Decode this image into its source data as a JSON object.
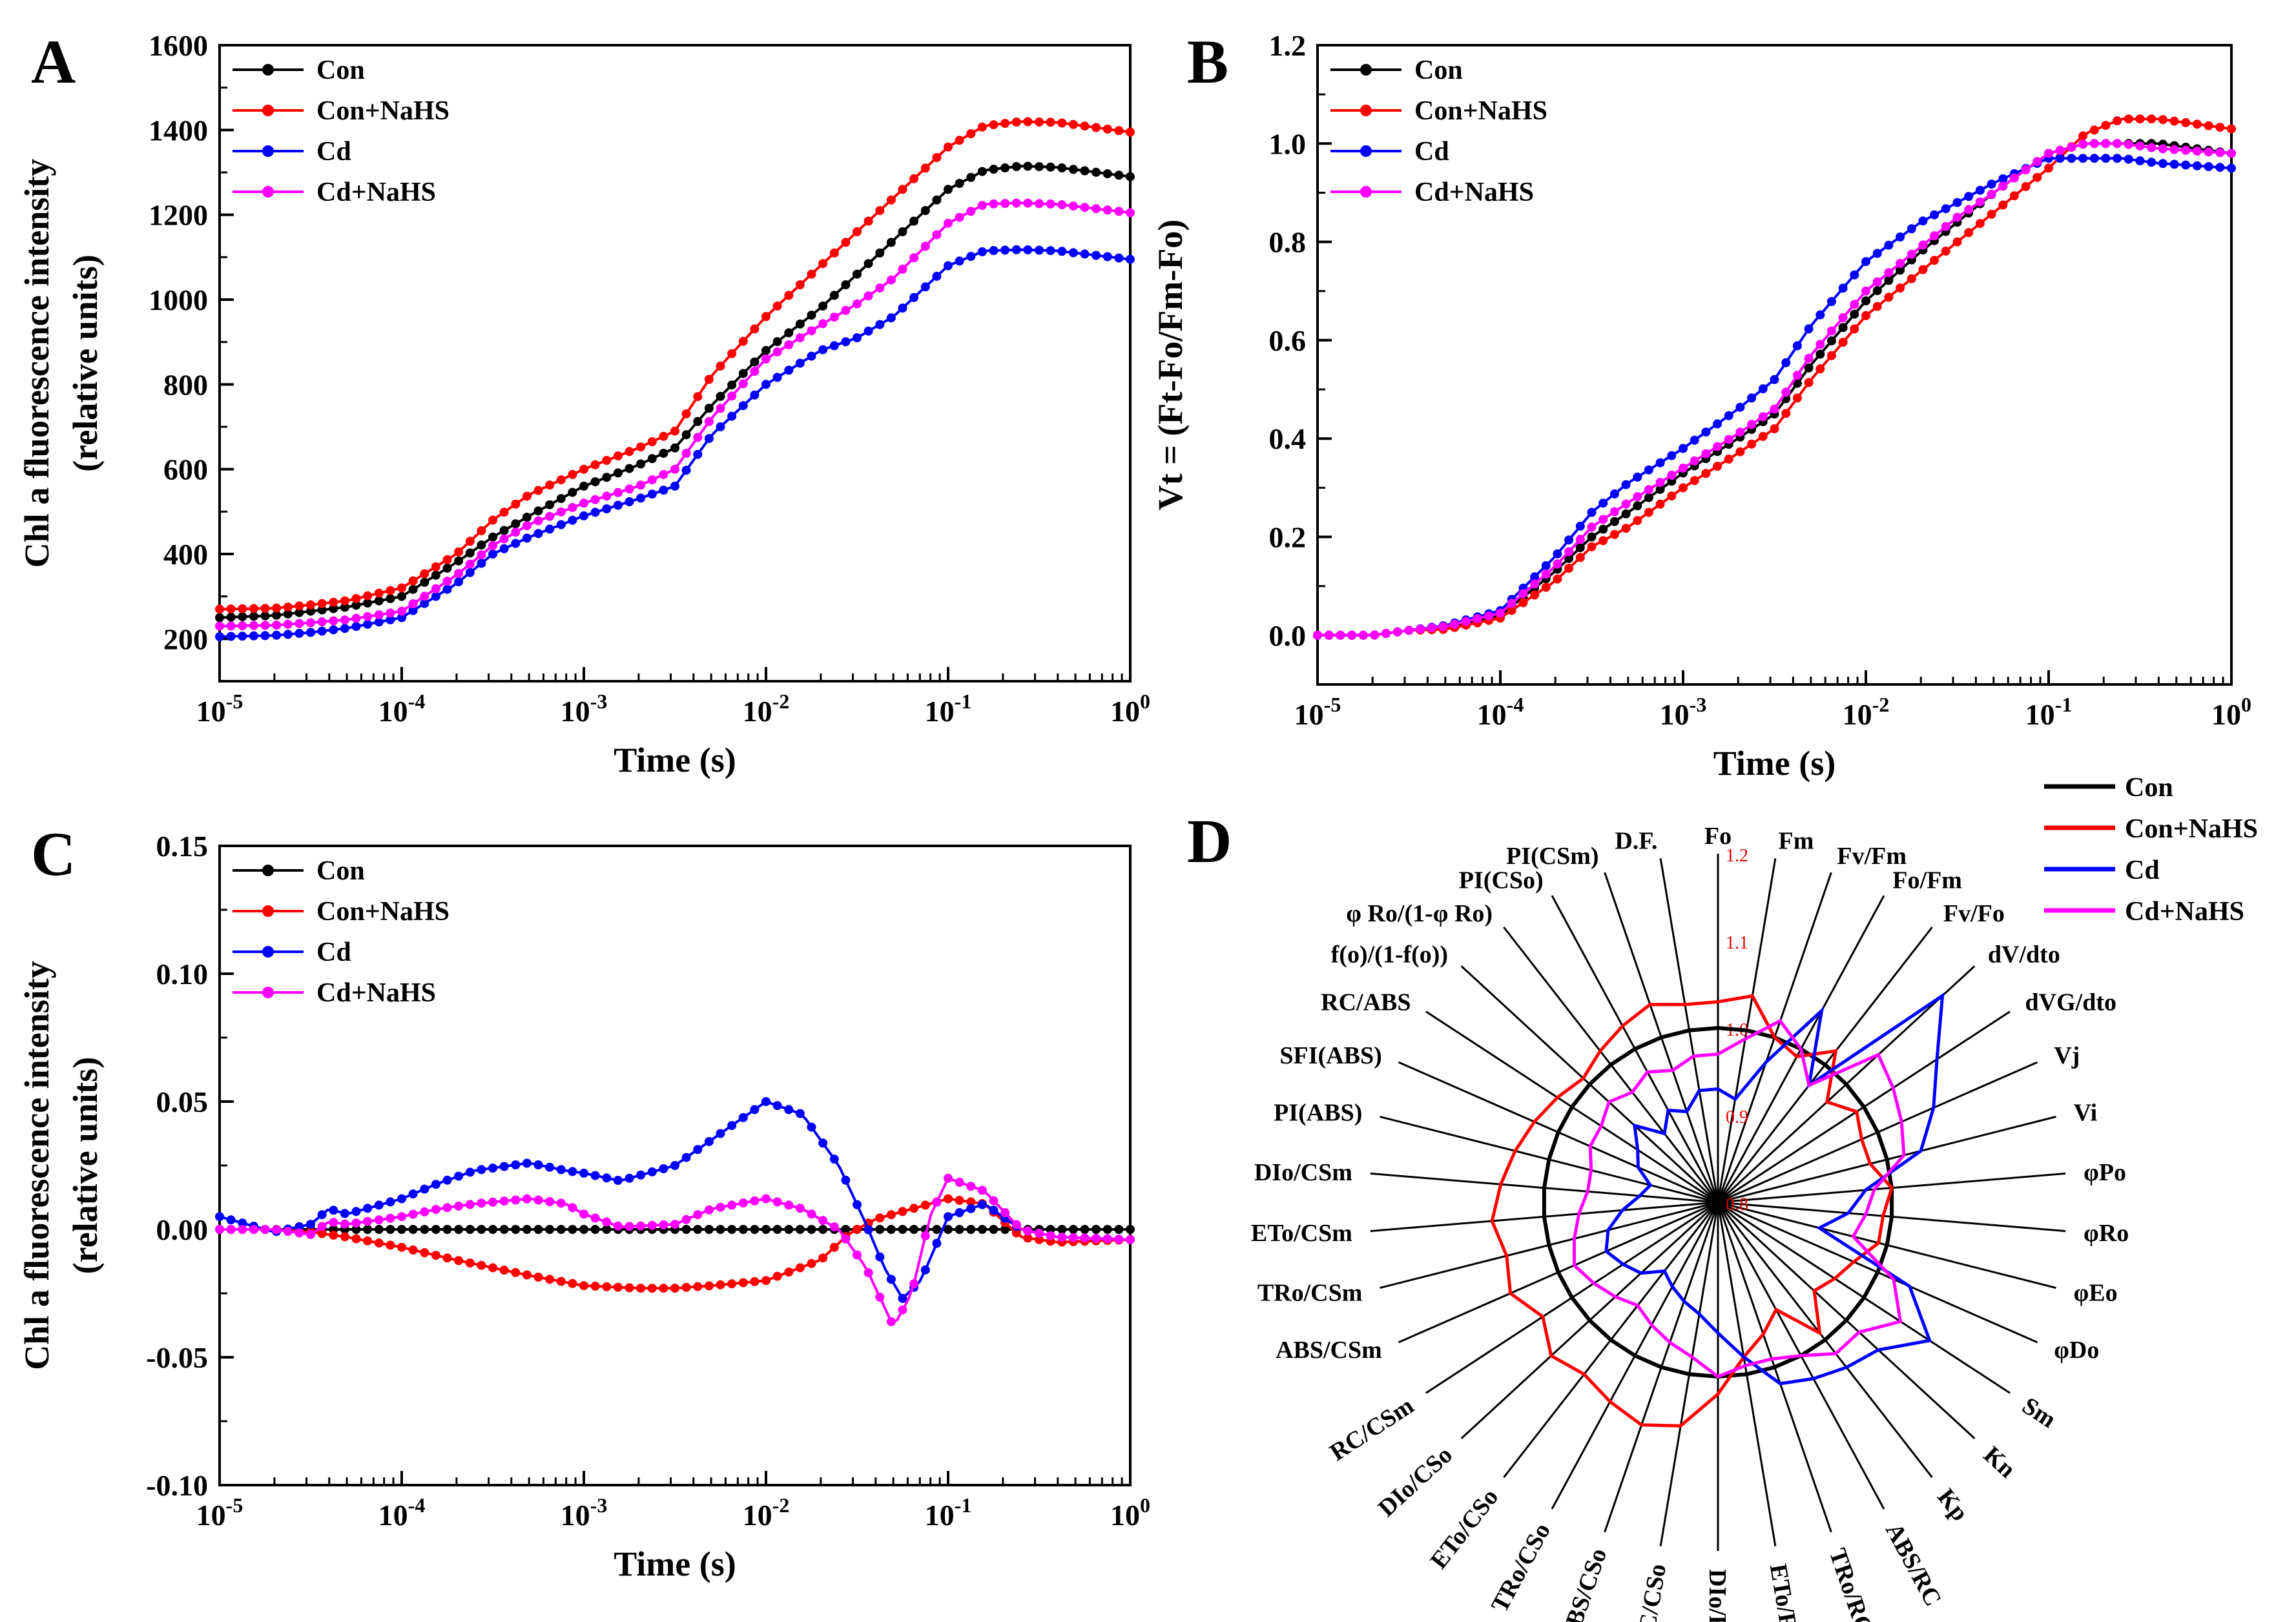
{
  "colors": {
    "con": "#000000",
    "con_nahs": "#ff0000",
    "cd": "#0000ff",
    "cd_nahs": "#ff00ff"
  },
  "panels": {
    "A": {
      "letter": "A"
    },
    "B": {
      "letter": "B"
    },
    "C": {
      "letter": "C"
    },
    "D": {
      "letter": "D"
    }
  },
  "chart_data": [
    {
      "id": "A",
      "type": "line",
      "xscale": "log",
      "xlabel": "Time (s)",
      "ylabel_line1": "Chl a fluorescence intensity",
      "ylabel_line2": "(relative units)",
      "xlim": [
        -5,
        0
      ],
      "ylim": [
        100,
        1600
      ],
      "xtick_exps": [
        "-5",
        "-4",
        "-3",
        "-2",
        "-1",
        "0"
      ],
      "yticks": [
        200,
        400,
        600,
        800,
        1000,
        1200,
        1400,
        1600
      ],
      "legend_position": "top-left",
      "series": [
        {
          "name": "Con",
          "color": "#000000",
          "logx": [
            -5,
            -4.7,
            -4.5,
            -4.3,
            -4,
            -3.7,
            -3.5,
            -3.3,
            -3,
            -2.7,
            -2.5,
            -2.3,
            -2,
            -1.7,
            -1.5,
            -1.3,
            -1,
            -0.8,
            -0.6,
            -0.4,
            0
          ],
          "y": [
            250,
            255,
            265,
            275,
            300,
            380,
            440,
            490,
            560,
            610,
            650,
            750,
            880,
            980,
            1060,
            1140,
            1260,
            1305,
            1315,
            1312,
            1290
          ]
        },
        {
          "name": "Con+NaHS",
          "color": "#ff0000",
          "logx": [
            -5,
            -4.7,
            -4.5,
            -4.3,
            -4,
            -3.7,
            -3.5,
            -3.3,
            -3,
            -2.7,
            -2.5,
            -2.3,
            -2,
            -1.7,
            -1.5,
            -1.3,
            -1,
            -0.8,
            -0.6,
            -0.4,
            0
          ],
          "y": [
            270,
            272,
            280,
            290,
            320,
            400,
            480,
            540,
            600,
            650,
            690,
            820,
            960,
            1080,
            1160,
            1240,
            1360,
            1410,
            1420,
            1418,
            1395
          ]
        },
        {
          "name": "Cd",
          "color": "#0000ff",
          "logx": [
            -5,
            -4.7,
            -4.5,
            -4.3,
            -4,
            -3.7,
            -3.5,
            -3.3,
            -3,
            -2.7,
            -2.5,
            -2.3,
            -2,
            -1.7,
            -1.5,
            -1.3,
            -1,
            -0.8,
            -0.6,
            -0.4,
            0
          ],
          "y": [
            205,
            208,
            215,
            225,
            250,
            330,
            400,
            440,
            490,
            530,
            560,
            680,
            800,
            880,
            910,
            960,
            1080,
            1115,
            1118,
            1115,
            1095
          ]
        },
        {
          "name": "Cd+NaHS",
          "color": "#ff00ff",
          "logx": [
            -5,
            -4.7,
            -4.5,
            -4.3,
            -4,
            -3.7,
            -3.5,
            -3.3,
            -3,
            -2.7,
            -2.5,
            -2.3,
            -2,
            -1.7,
            -1.5,
            -1.3,
            -1,
            -0.8,
            -0.6,
            -0.4,
            0
          ],
          "y": [
            230,
            232,
            238,
            245,
            265,
            350,
            420,
            470,
            520,
            560,
            600,
            720,
            860,
            940,
            990,
            1050,
            1180,
            1225,
            1228,
            1225,
            1205
          ]
        }
      ]
    },
    {
      "id": "B",
      "type": "line",
      "xscale": "log",
      "xlabel": "Time (s)",
      "ylabel_line1": "Vt = (Ft-Fo/Fm-Fo)",
      "ylabel_line2": "",
      "xlim": [
        -5,
        0
      ],
      "ylim": [
        -0.1,
        1.2
      ],
      "xtick_exps": [
        "-5",
        "-4",
        "-3",
        "-2",
        "-1",
        "0"
      ],
      "yticks": [
        0.0,
        0.2,
        0.4,
        0.6,
        0.8,
        1.0,
        1.2
      ],
      "ytick_labels": [
        "0.0",
        "0.2",
        "0.4",
        "0.6",
        "0.8",
        "1.0",
        "1.2"
      ],
      "legend_position": "top-left",
      "series": [
        {
          "name": "Con",
          "color": "#000000",
          "logx": [
            -5,
            -4.7,
            -4.5,
            -4.3,
            -4,
            -3.7,
            -3.5,
            -3.3,
            -3,
            -2.7,
            -2.5,
            -2.3,
            -2,
            -1.7,
            -1.5,
            -1.3,
            -1,
            -0.8,
            -0.6,
            -0.4,
            0
          ],
          "y": [
            0,
            0,
            0.01,
            0.015,
            0.04,
            0.13,
            0.2,
            0.25,
            0.33,
            0.4,
            0.45,
            0.55,
            0.68,
            0.78,
            0.84,
            0.9,
            0.98,
            1.0,
            1.0,
            1.0,
            0.98
          ]
        },
        {
          "name": "Con+NaHS",
          "color": "#ff0000",
          "logx": [
            -5,
            -4.7,
            -4.5,
            -4.3,
            -4,
            -3.7,
            -3.5,
            -3.3,
            -3,
            -2.7,
            -2.5,
            -2.3,
            -2,
            -1.7,
            -1.5,
            -1.3,
            -1,
            -0.8,
            -0.6,
            -0.4,
            0
          ],
          "y": [
            0,
            0,
            0.01,
            0.012,
            0.035,
            0.11,
            0.18,
            0.22,
            0.3,
            0.37,
            0.42,
            0.52,
            0.65,
            0.74,
            0.8,
            0.86,
            0.95,
            1.02,
            1.05,
            1.05,
            1.03
          ]
        },
        {
          "name": "Cd",
          "color": "#0000ff",
          "logx": [
            -5,
            -4.7,
            -4.5,
            -4.3,
            -4,
            -3.7,
            -3.5,
            -3.3,
            -3,
            -2.7,
            -2.5,
            -2.3,
            -2,
            -1.7,
            -1.5,
            -1.3,
            -1,
            -0.8,
            -0.6,
            -0.4,
            0
          ],
          "y": [
            0,
            0,
            0.01,
            0.02,
            0.05,
            0.16,
            0.25,
            0.31,
            0.38,
            0.46,
            0.52,
            0.63,
            0.76,
            0.84,
            0.88,
            0.92,
            0.97,
            0.97,
            0.97,
            0.96,
            0.95
          ]
        },
        {
          "name": "Cd+NaHS",
          "color": "#ff00ff",
          "logx": [
            -5,
            -4.7,
            -4.5,
            -4.3,
            -4,
            -3.7,
            -3.5,
            -3.3,
            -3,
            -2.7,
            -2.5,
            -2.3,
            -2,
            -1.7,
            -1.5,
            -1.3,
            -1,
            -0.8,
            -0.6,
            -0.4,
            0
          ],
          "y": [
            0,
            0,
            0.01,
            0.018,
            0.045,
            0.14,
            0.22,
            0.27,
            0.34,
            0.41,
            0.46,
            0.57,
            0.7,
            0.79,
            0.85,
            0.9,
            0.98,
            1.0,
            1.0,
            0.99,
            0.98
          ]
        }
      ]
    },
    {
      "id": "C",
      "type": "line",
      "xscale": "log",
      "xlabel": "Time (s)",
      "ylabel_line1": "Chl a fluorescence intensity",
      "ylabel_line2": "(relative units)",
      "xlim": [
        -5,
        0
      ],
      "ylim": [
        -0.1,
        0.15
      ],
      "xtick_exps": [
        "-5",
        "-4",
        "-3",
        "-2",
        "-1",
        "0"
      ],
      "yticks": [
        -0.1,
        -0.05,
        0.0,
        0.05,
        0.1,
        0.15
      ],
      "ytick_labels": [
        "-0.10",
        "-0.05",
        "0.00",
        "0.05",
        "0.10",
        "0.15"
      ],
      "legend_position": "top-left",
      "series": [
        {
          "name": "Con",
          "color": "#000000",
          "logx": [
            -5,
            -4.5,
            -4,
            -3.5,
            -3,
            -2.5,
            -2,
            -1.5,
            -1,
            -0.5,
            0
          ],
          "y": [
            0,
            0,
            0,
            0,
            0,
            0,
            0,
            0,
            0,
            0,
            0
          ]
        },
        {
          "name": "Con+NaHS",
          "color": "#ff0000",
          "logx": [
            -5,
            -4.7,
            -4.5,
            -4.3,
            -4,
            -3.7,
            -3.5,
            -3.3,
            -3,
            -2.7,
            -2.5,
            -2.3,
            -2,
            -1.7,
            -1.55,
            -1.4,
            -1.2,
            -1,
            -0.8,
            -0.6,
            -0.4,
            0
          ],
          "y": [
            0,
            0,
            -0.001,
            -0.003,
            -0.007,
            -0.012,
            -0.015,
            -0.018,
            -0.022,
            -0.023,
            -0.023,
            -0.022,
            -0.02,
            -0.012,
            -0.002,
            0.004,
            0.008,
            0.012,
            0.01,
            -0.003,
            -0.005,
            -0.004
          ]
        },
        {
          "name": "Cd",
          "color": "#0000ff",
          "logx": [
            -5,
            -4.7,
            -4.5,
            -4.4,
            -4.3,
            -4,
            -3.8,
            -3.6,
            -3.3,
            -3.1,
            -3,
            -2.8,
            -2.5,
            -2.3,
            -2,
            -1.8,
            -1.6,
            -1.45,
            -1.35,
            -1.25,
            -1.15,
            -1,
            -0.8,
            -0.6,
            -0.4,
            0
          ],
          "y": [
            0.005,
            -0.001,
            0.002,
            0.008,
            0.006,
            0.012,
            0.018,
            0.023,
            0.026,
            0.023,
            0.022,
            0.019,
            0.025,
            0.035,
            0.05,
            0.045,
            0.025,
            0.002,
            -0.015,
            -0.027,
            -0.02,
            0.005,
            0.01,
            0.0,
            -0.003,
            -0.004
          ]
        },
        {
          "name": "Cd+NaHS",
          "color": "#ff00ff",
          "logx": [
            -5,
            -4.7,
            -4.5,
            -4.4,
            -4.3,
            -4,
            -3.8,
            -3.6,
            -3.3,
            -3.1,
            -3,
            -2.8,
            -2.5,
            -2.3,
            -2,
            -1.8,
            -1.6,
            -1.45,
            -1.3,
            -1.2,
            -1.1,
            -1,
            -0.8,
            -0.6,
            -0.4,
            0
          ],
          "y": [
            0,
            0,
            -0.002,
            0.003,
            0.002,
            0.005,
            0.008,
            0.01,
            0.012,
            0.01,
            0.006,
            0.001,
            0.002,
            0.008,
            0.012,
            0.008,
            0.0,
            -0.015,
            -0.038,
            -0.025,
            0.005,
            0.02,
            0.015,
            0.0,
            -0.003,
            -0.004
          ]
        }
      ]
    },
    {
      "id": "D",
      "type": "radar",
      "title": "",
      "rlim": [
        0.8,
        1.2
      ],
      "r_ticks": [
        "1.2",
        "1.1",
        "1.0",
        "0.9",
        "0.8"
      ],
      "legend_position": "top-right",
      "axes": [
        "Fo",
        "Fm",
        "Fv/Fm",
        "Fo/Fm",
        "Fv/Fo",
        "dV/dto",
        "dVG/dto",
        "Vj",
        "Vi",
        "φPo",
        "φRo",
        "φEo",
        "φDo",
        "Sm",
        "Kn",
        "Kp",
        "ABS/RC",
        "TRo/RC",
        "ETo/RC",
        "DIo/RC",
        "RC/CSo",
        "ABS/CSo",
        "TRo/CSo",
        "ETo/CSo",
        "DIo/CSo",
        "RC/CSm",
        "ABS/CSm",
        "TRo/CSm",
        "ETo/CSm",
        "DIo/CSm",
        "PI(ABS)",
        "SFI(ABS)",
        "RC/ABS",
        "f(o)/(1-f(o))",
        "φ Ro/(1-φ Ro)",
        "PI(CSo)",
        "PI(CSm)",
        "D.F."
      ],
      "series": [
        {
          "name": "Con",
          "color": "#000000",
          "values": [
            1,
            1,
            1,
            1,
            1,
            1,
            1,
            1,
            1,
            1,
            1,
            1,
            1,
            1,
            1,
            1,
            1,
            1,
            1,
            1,
            1,
            1,
            1,
            1,
            1,
            1,
            1,
            1,
            1,
            1,
            1,
            1,
            1,
            1,
            1,
            1,
            1,
            1
          ]
        },
        {
          "name": "Con+NaHS",
          "color": "#ff0000",
          "values": [
            1.03,
            1.04,
            1.0,
            0.99,
            1.02,
            0.97,
            0.99,
            0.98,
            0.98,
            1.0,
            0.99,
            0.99,
            0.97,
            0.96,
            0.95,
            0.99,
            0.94,
            0.96,
            0.98,
            1.02,
            1.06,
            1.07,
            1.06,
            1.05,
            1.06,
            1.04,
            1.06,
            1.05,
            1.06,
            1.05,
            1.04,
            1.03,
            1.02,
            1.01,
            1.02,
            1.03,
            1.04,
            1.03
          ]
        },
        {
          "name": "Cd",
          "color": "#0000ff",
          "values": [
            0.93,
            0.92,
            0.97,
            1.05,
            0.97,
            1.15,
            1.1,
            1.07,
            1.04,
            0.97,
            0.95,
            0.92,
            1.04,
            1.09,
            1.05,
            1.04,
            1.03,
            1.02,
            0.98,
            0.95,
            0.93,
            0.92,
            0.91,
            0.9,
            0.92,
            0.93,
            0.94,
            0.93,
            0.91,
            0.89,
            0.88,
            0.9,
            0.91,
            0.93,
            0.9,
            0.92,
            0.91,
            0.93
          ]
        },
        {
          "name": "Cd+NaHS",
          "color": "#ff00ff",
          "values": [
            0.97,
            0.99,
            1.02,
            1.0,
            0.97,
            1.05,
            1.04,
            1.03,
            1.02,
            0.98,
            0.97,
            0.96,
            1.02,
            1.05,
            1.02,
            1.02,
            1.0,
            0.99,
            0.99,
            1.0,
            0.98,
            0.97,
            0.96,
            0.95,
            0.96,
            0.97,
            0.98,
            0.97,
            0.96,
            0.95,
            0.95,
            0.96,
            0.96,
            0.97,
            0.96,
            0.97,
            0.96,
            0.97
          ]
        }
      ]
    }
  ]
}
